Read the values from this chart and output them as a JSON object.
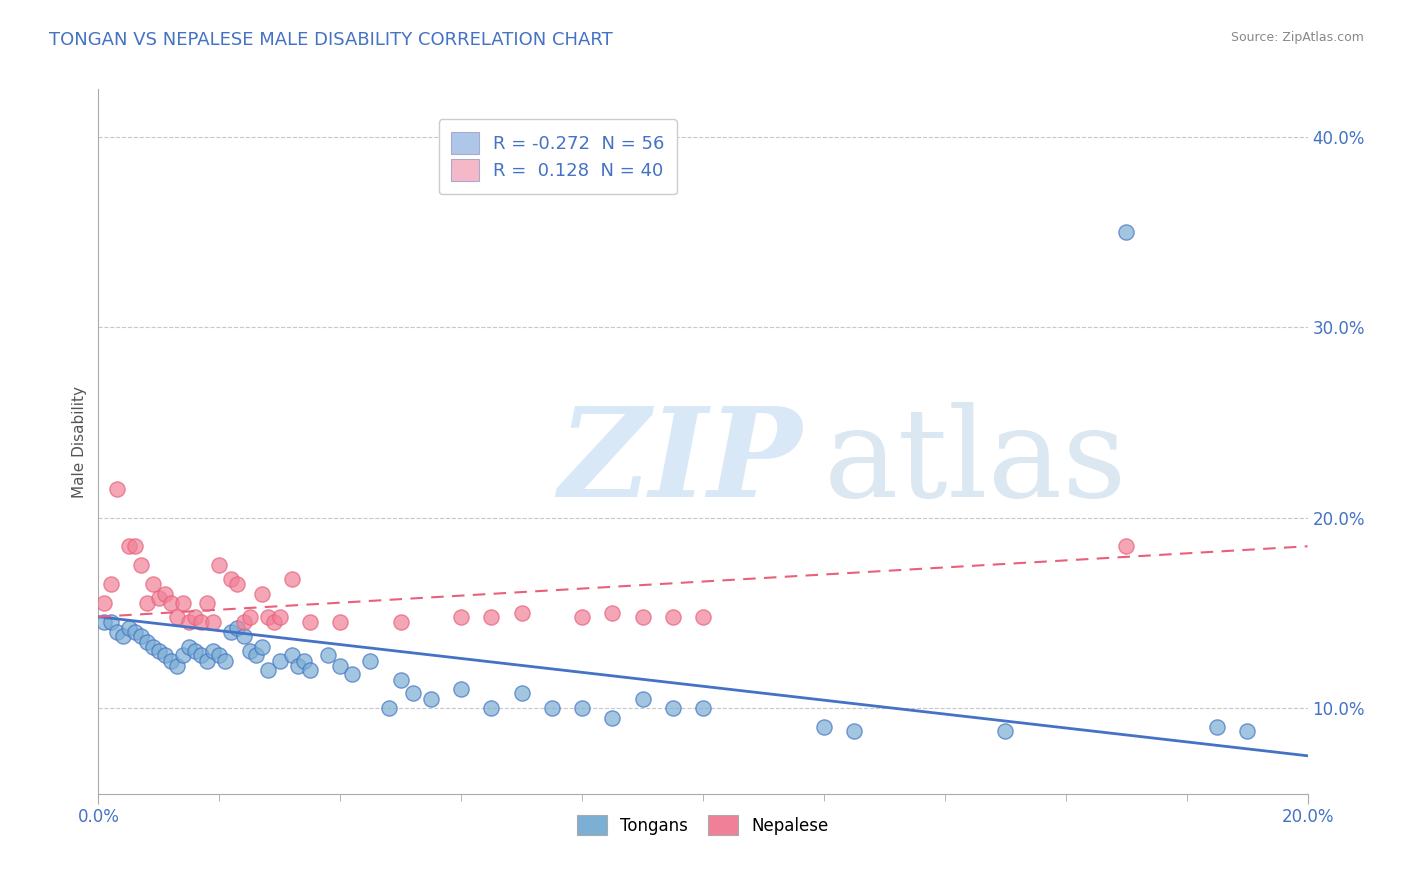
{
  "title": "TONGAN VS NEPALESE MALE DISABILITY CORRELATION CHART",
  "source": "Source: ZipAtlas.com",
  "ylabel": "Male Disability",
  "legend_top": [
    {
      "label_r": "R = -0.272",
      "label_n": "N = 56",
      "color": "#aec6e8"
    },
    {
      "label_r": "R =  0.128",
      "label_n": "N = 40",
      "color": "#f4b8c8"
    }
  ],
  "right_yticks": [
    "40.0%",
    "30.0%",
    "20.0%",
    "10.0%"
  ],
  "right_ytick_vals": [
    0.4,
    0.3,
    0.2,
    0.1
  ],
  "tongans_scatter": [
    [
      0.001,
      0.145
    ],
    [
      0.002,
      0.145
    ],
    [
      0.003,
      0.14
    ],
    [
      0.004,
      0.138
    ],
    [
      0.005,
      0.142
    ],
    [
      0.006,
      0.14
    ],
    [
      0.007,
      0.138
    ],
    [
      0.008,
      0.135
    ],
    [
      0.009,
      0.132
    ],
    [
      0.01,
      0.13
    ],
    [
      0.011,
      0.128
    ],
    [
      0.012,
      0.125
    ],
    [
      0.013,
      0.122
    ],
    [
      0.014,
      0.128
    ],
    [
      0.015,
      0.132
    ],
    [
      0.016,
      0.13
    ],
    [
      0.017,
      0.128
    ],
    [
      0.018,
      0.125
    ],
    [
      0.019,
      0.13
    ],
    [
      0.02,
      0.128
    ],
    [
      0.021,
      0.125
    ],
    [
      0.022,
      0.14
    ],
    [
      0.023,
      0.142
    ],
    [
      0.024,
      0.138
    ],
    [
      0.025,
      0.13
    ],
    [
      0.026,
      0.128
    ],
    [
      0.027,
      0.132
    ],
    [
      0.028,
      0.12
    ],
    [
      0.03,
      0.125
    ],
    [
      0.032,
      0.128
    ],
    [
      0.033,
      0.122
    ],
    [
      0.034,
      0.125
    ],
    [
      0.035,
      0.12
    ],
    [
      0.038,
      0.128
    ],
    [
      0.04,
      0.122
    ],
    [
      0.042,
      0.118
    ],
    [
      0.045,
      0.125
    ],
    [
      0.048,
      0.1
    ],
    [
      0.05,
      0.115
    ],
    [
      0.052,
      0.108
    ],
    [
      0.055,
      0.105
    ],
    [
      0.06,
      0.11
    ],
    [
      0.065,
      0.1
    ],
    [
      0.07,
      0.108
    ],
    [
      0.075,
      0.1
    ],
    [
      0.08,
      0.1
    ],
    [
      0.085,
      0.095
    ],
    [
      0.09,
      0.105
    ],
    [
      0.095,
      0.1
    ],
    [
      0.1,
      0.1
    ],
    [
      0.12,
      0.09
    ],
    [
      0.125,
      0.088
    ],
    [
      0.15,
      0.088
    ],
    [
      0.17,
      0.35
    ],
    [
      0.185,
      0.09
    ],
    [
      0.19,
      0.088
    ]
  ],
  "nepalese_scatter": [
    [
      0.001,
      0.155
    ],
    [
      0.002,
      0.165
    ],
    [
      0.003,
      0.215
    ],
    [
      0.005,
      0.185
    ],
    [
      0.006,
      0.185
    ],
    [
      0.007,
      0.175
    ],
    [
      0.008,
      0.155
    ],
    [
      0.009,
      0.165
    ],
    [
      0.01,
      0.158
    ],
    [
      0.011,
      0.16
    ],
    [
      0.012,
      0.155
    ],
    [
      0.013,
      0.148
    ],
    [
      0.014,
      0.155
    ],
    [
      0.015,
      0.145
    ],
    [
      0.016,
      0.148
    ],
    [
      0.017,
      0.145
    ],
    [
      0.018,
      0.155
    ],
    [
      0.019,
      0.145
    ],
    [
      0.02,
      0.175
    ],
    [
      0.022,
      0.168
    ],
    [
      0.023,
      0.165
    ],
    [
      0.024,
      0.145
    ],
    [
      0.025,
      0.148
    ],
    [
      0.027,
      0.16
    ],
    [
      0.028,
      0.148
    ],
    [
      0.029,
      0.145
    ],
    [
      0.03,
      0.148
    ],
    [
      0.032,
      0.168
    ],
    [
      0.035,
      0.145
    ],
    [
      0.04,
      0.145
    ],
    [
      0.05,
      0.145
    ],
    [
      0.06,
      0.148
    ],
    [
      0.065,
      0.148
    ],
    [
      0.07,
      0.15
    ],
    [
      0.08,
      0.148
    ],
    [
      0.085,
      0.15
    ],
    [
      0.09,
      0.148
    ],
    [
      0.095,
      0.148
    ],
    [
      0.1,
      0.148
    ],
    [
      0.17,
      0.185
    ]
  ],
  "tongans_line": {
    "x": [
      0.0,
      0.2
    ],
    "y": [
      0.148,
      0.075
    ]
  },
  "nepalese_line": {
    "x": [
      0.0,
      0.2
    ],
    "y": [
      0.148,
      0.185
    ]
  },
  "scatter_color_tongans": "#7bafd4",
  "scatter_color_nepalese": "#f08098",
  "line_color_tongans": "#4472c4",
  "line_color_nepalese": "#e8607a",
  "bg_color": "#ffffff",
  "grid_color": "#c8c8c8",
  "title_color": "#4472c4",
  "source_color": "#888888",
  "ylabel_color": "#555555",
  "xlim": [
    0.0,
    0.2
  ],
  "ylim": [
    0.055,
    0.425
  ],
  "legend_text_color": "#4472c4"
}
